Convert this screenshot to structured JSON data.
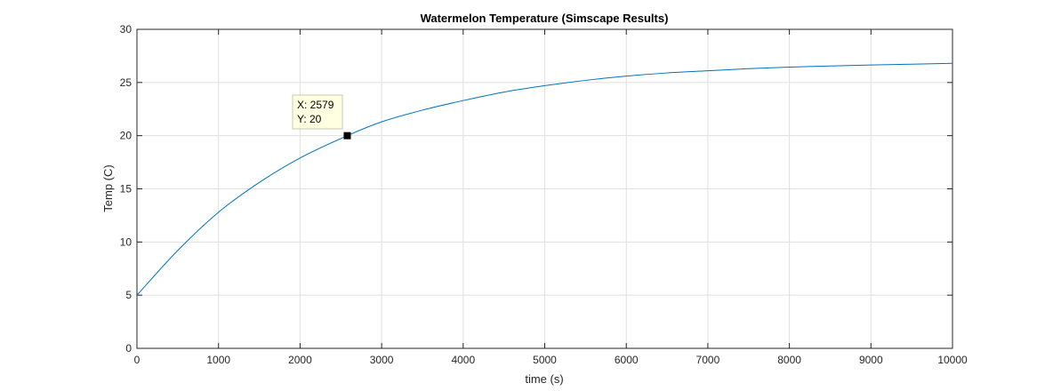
{
  "chart_data": {
    "type": "line",
    "title": "Watermelon Temperature (Simscape Results)",
    "xlabel": "time (s)",
    "ylabel": "Temp (C)",
    "xlim": [
      0,
      10000
    ],
    "ylim": [
      0,
      30
    ],
    "x_ticks": [
      0,
      1000,
      2000,
      3000,
      4000,
      5000,
      6000,
      7000,
      8000,
      9000,
      10000
    ],
    "y_ticks": [
      0,
      5,
      10,
      15,
      20,
      25,
      30
    ],
    "grid": true,
    "legend": "none",
    "series": [
      {
        "color": "#0072BD",
        "x": [
          0,
          500,
          1000,
          1500,
          2000,
          2579,
          3000,
          3500,
          4000,
          4500,
          5000,
          5500,
          6000,
          6500,
          7000,
          7500,
          8000,
          8500,
          9000,
          9500,
          10000
        ],
        "y": [
          5.0,
          9.2,
          12.8,
          15.6,
          17.9,
          20.0,
          21.3,
          22.4,
          23.3,
          24.1,
          24.7,
          25.2,
          25.6,
          25.9,
          26.1,
          26.3,
          26.45,
          26.55,
          26.65,
          26.72,
          26.8
        ]
      }
    ],
    "datatip": {
      "x": 2579,
      "y": 20,
      "x_text": "X: 2579",
      "y_text": "Y: 20"
    }
  }
}
